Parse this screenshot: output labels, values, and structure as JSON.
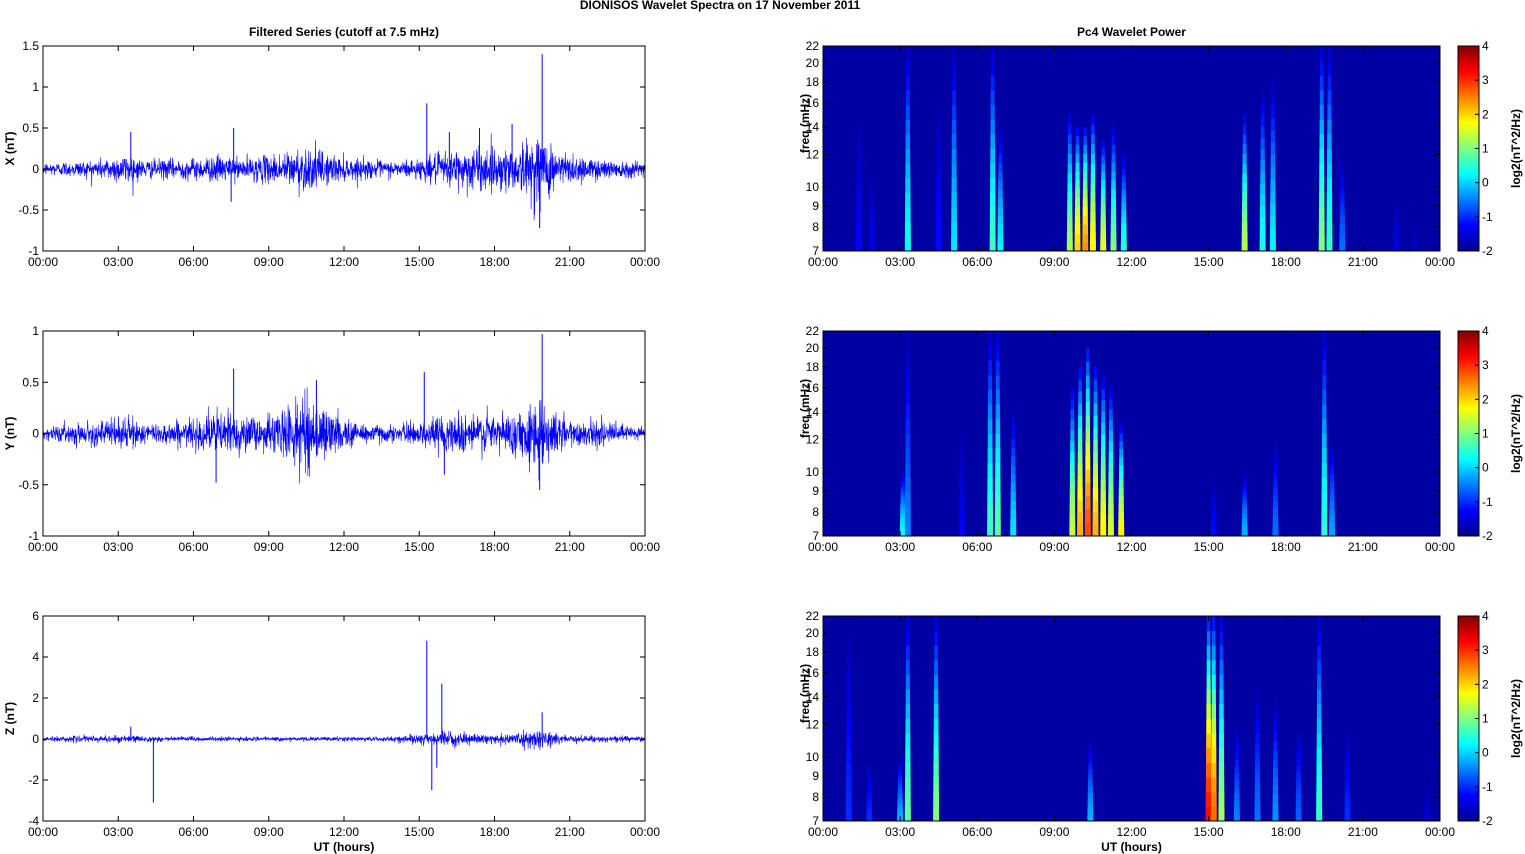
{
  "page_title": "DIONISOS Wavelet Spectra on 17 November  2011",
  "chart_data": [
    {
      "type": "line",
      "title": "Filtered Series (cutoff at 7.5 mHz)",
      "ylabel": "X (nT)",
      "xlabel": "",
      "xlim": [
        0,
        24
      ],
      "ylim": [
        -1,
        1.5
      ],
      "x_ticks": [
        "00:00",
        "03:00",
        "06:00",
        "09:00",
        "12:00",
        "15:00",
        "18:00",
        "21:00",
        "00:00"
      ],
      "y_ticks": [
        "-1",
        "-0.5",
        "0",
        "0.5",
        "1",
        "1.5"
      ],
      "line_color": "#0000ff",
      "envelope": [
        [
          0,
          0.08
        ],
        [
          2,
          0.12
        ],
        [
          3.4,
          0.2
        ],
        [
          4,
          0.12
        ],
        [
          6,
          0.14
        ],
        [
          7,
          0.18
        ],
        [
          7.8,
          0.14
        ],
        [
          9,
          0.18
        ],
        [
          10.5,
          0.3
        ],
        [
          12,
          0.15
        ],
        [
          14,
          0.1
        ],
        [
          15,
          0.14
        ],
        [
          16,
          0.22
        ],
        [
          17,
          0.3
        ],
        [
          18,
          0.28
        ],
        [
          19,
          0.3
        ],
        [
          19.8,
          0.5
        ],
        [
          20.5,
          0.25
        ],
        [
          22,
          0.14
        ],
        [
          24,
          0.1
        ]
      ],
      "spikes": [
        {
          "x": 3.5,
          "y": 0.45
        },
        {
          "x": 7.6,
          "y": 0.5
        },
        {
          "x": 7.5,
          "y": -0.4
        },
        {
          "x": 15.3,
          "y": 0.8
        },
        {
          "x": 16.2,
          "y": 0.45
        },
        {
          "x": 17.4,
          "y": 0.5
        },
        {
          "x": 19.9,
          "y": 1.4
        },
        {
          "x": 19.8,
          "y": -0.72
        },
        {
          "x": 18.7,
          "y": 0.55
        }
      ]
    },
    {
      "type": "line",
      "title": "",
      "ylabel": "Y (nT)",
      "xlabel": "",
      "xlim": [
        0,
        24
      ],
      "ylim": [
        -1,
        1
      ],
      "x_ticks": [
        "00:00",
        "03:00",
        "06:00",
        "09:00",
        "12:00",
        "15:00",
        "18:00",
        "21:00",
        "00:00"
      ],
      "y_ticks": [
        "-1",
        "-0.5",
        "0",
        "0.5",
        "1"
      ],
      "line_color": "#0000ff",
      "envelope": [
        [
          0,
          0.07
        ],
        [
          2,
          0.12
        ],
        [
          3.4,
          0.18
        ],
        [
          4,
          0.1
        ],
        [
          6,
          0.14
        ],
        [
          7,
          0.25
        ],
        [
          7.8,
          0.2
        ],
        [
          9,
          0.18
        ],
        [
          10.5,
          0.4
        ],
        [
          12,
          0.15
        ],
        [
          14,
          0.08
        ],
        [
          15,
          0.12
        ],
        [
          16,
          0.2
        ],
        [
          17,
          0.22
        ],
        [
          18,
          0.22
        ],
        [
          19,
          0.2
        ],
        [
          19.8,
          0.45
        ],
        [
          20.5,
          0.2
        ],
        [
          22,
          0.12
        ],
        [
          24,
          0.08
        ]
      ],
      "spikes": [
        {
          "x": 7.6,
          "y": 0.63
        },
        {
          "x": 6.9,
          "y": -0.48
        },
        {
          "x": 15.2,
          "y": 0.6
        },
        {
          "x": 19.9,
          "y": 0.97
        },
        {
          "x": 19.8,
          "y": -0.55
        },
        {
          "x": 10.9,
          "y": 0.52
        },
        {
          "x": 16,
          "y": -0.4
        }
      ]
    },
    {
      "type": "line",
      "title": "",
      "ylabel": "Z (nT)",
      "xlabel": "UT (hours)",
      "xlim": [
        0,
        24
      ],
      "ylim": [
        -4,
        6
      ],
      "x_ticks": [
        "00:00",
        "03:00",
        "06:00",
        "09:00",
        "12:00",
        "15:00",
        "18:00",
        "21:00",
        "00:00"
      ],
      "y_ticks": [
        "-4",
        "-2",
        "0",
        "2",
        "4",
        "6"
      ],
      "line_color": "#0000ff",
      "envelope": [
        [
          0,
          0.12
        ],
        [
          3,
          0.2
        ],
        [
          4,
          0.15
        ],
        [
          9,
          0.1
        ],
        [
          14,
          0.12
        ],
        [
          15,
          0.3
        ],
        [
          16,
          0.35
        ],
        [
          18,
          0.2
        ],
        [
          19.8,
          0.5
        ],
        [
          21,
          0.18
        ],
        [
          24,
          0.15
        ]
      ],
      "spikes": [
        {
          "x": 4.4,
          "y": -3.1
        },
        {
          "x": 15.3,
          "y": 4.8
        },
        {
          "x": 15.5,
          "y": -2.5
        },
        {
          "x": 15.9,
          "y": 2.7
        },
        {
          "x": 15.7,
          "y": -1.4
        },
        {
          "x": 19.9,
          "y": 1.3
        },
        {
          "x": 3.5,
          "y": 0.6
        }
      ]
    },
    {
      "type": "heatmap",
      "title": "Pc4 Wavelet Power",
      "ylabel": "freq (mHz)",
      "xlabel": "",
      "xlim": [
        0,
        24
      ],
      "ylim": [
        7,
        22
      ],
      "x_ticks": [
        "00:00",
        "03:00",
        "06:00",
        "09:00",
        "12:00",
        "15:00",
        "18:00",
        "21:00",
        "00:00"
      ],
      "y_ticks": [
        "7",
        "8",
        "9",
        "10",
        "12",
        "14",
        "16",
        "18",
        "20",
        "22"
      ],
      "colorbar": {
        "label": "log2(nT^2/Hz)",
        "ticks": [
          "-2",
          "-1",
          "0",
          "1",
          "2",
          "3",
          "4"
        ],
        "range": [
          -2,
          4
        ]
      },
      "background": -2,
      "streaks": [
        {
          "x": 1.4,
          "top": 17,
          "peak": -1.3
        },
        {
          "x": 1.9,
          "top": 12,
          "peak": -1.4
        },
        {
          "x": 3.3,
          "top": 22,
          "peak": 0.3
        },
        {
          "x": 4.5,
          "top": 18,
          "peak": -1.2
        },
        {
          "x": 5.1,
          "top": 22,
          "peak": 0.1
        },
        {
          "x": 6.6,
          "top": 22,
          "peak": 0.6
        },
        {
          "x": 6.9,
          "top": 14,
          "peak": 0.2
        },
        {
          "x": 9.6,
          "top": 15,
          "peak": 1.2
        },
        {
          "x": 9.9,
          "top": 14,
          "peak": 2.0
        },
        {
          "x": 10.2,
          "top": 14,
          "peak": 2.4
        },
        {
          "x": 10.5,
          "top": 15,
          "peak": 1.8
        },
        {
          "x": 10.9,
          "top": 13,
          "peak": 1.6
        },
        {
          "x": 11.3,
          "top": 14,
          "peak": 1.0
        },
        {
          "x": 11.7,
          "top": 12,
          "peak": 0.5
        },
        {
          "x": 16.4,
          "top": 15,
          "peak": 1.3
        },
        {
          "x": 17.1,
          "top": 17,
          "peak": 0.4
        },
        {
          "x": 17.5,
          "top": 18,
          "peak": 0.2
        },
        {
          "x": 19.4,
          "top": 22,
          "peak": 1.0
        },
        {
          "x": 19.7,
          "top": 22,
          "peak": 0.6
        },
        {
          "x": 20.2,
          "top": 12,
          "peak": -0.6
        },
        {
          "x": 22.3,
          "top": 10,
          "peak": -1.4
        },
        {
          "x": 23.0,
          "top": 9,
          "peak": -1.6
        }
      ]
    },
    {
      "type": "heatmap",
      "title": "",
      "ylabel": "freq (mHz)",
      "xlabel": "",
      "xlim": [
        0,
        24
      ],
      "ylim": [
        7,
        22
      ],
      "x_ticks": [
        "00:00",
        "03:00",
        "06:00",
        "09:00",
        "12:00",
        "15:00",
        "18:00",
        "21:00",
        "00:00"
      ],
      "y_ticks": [
        "7",
        "8",
        "9",
        "10",
        "12",
        "14",
        "16",
        "18",
        "20",
        "22"
      ],
      "colorbar": {
        "label": "log2(nT^2/Hz)",
        "ticks": [
          "-2",
          "-1",
          "0",
          "1",
          "2",
          "3",
          "4"
        ],
        "range": [
          -2,
          4
        ]
      },
      "background": -2,
      "streaks": [
        {
          "x": 3.1,
          "top": 10,
          "peak": 0.3
        },
        {
          "x": 3.3,
          "top": 22,
          "peak": -0.5
        },
        {
          "x": 5.4,
          "top": 14,
          "peak": -1.3
        },
        {
          "x": 6.5,
          "top": 22,
          "peak": 0.6
        },
        {
          "x": 6.8,
          "top": 22,
          "peak": 0.8
        },
        {
          "x": 7.4,
          "top": 14,
          "peak": 0.1
        },
        {
          "x": 9.7,
          "top": 16,
          "peak": 1.4
        },
        {
          "x": 10.0,
          "top": 18,
          "peak": 2.2
        },
        {
          "x": 10.3,
          "top": 20,
          "peak": 2.8
        },
        {
          "x": 10.6,
          "top": 18,
          "peak": 2.2
        },
        {
          "x": 10.9,
          "top": 17,
          "peak": 1.8
        },
        {
          "x": 11.2,
          "top": 16,
          "peak": 1.5
        },
        {
          "x": 11.6,
          "top": 13,
          "peak": 1.8
        },
        {
          "x": 15.2,
          "top": 10,
          "peak": -1.2
        },
        {
          "x": 16.4,
          "top": 10,
          "peak": -0.2
        },
        {
          "x": 17.6,
          "top": 12,
          "peak": -0.6
        },
        {
          "x": 19.5,
          "top": 22,
          "peak": 0.5
        },
        {
          "x": 19.8,
          "top": 12,
          "peak": -0.3
        }
      ]
    },
    {
      "type": "heatmap",
      "title": "",
      "ylabel": "freq (mHz)",
      "xlabel": "UT (hours)",
      "xlim": [
        0,
        24
      ],
      "ylim": [
        7,
        22
      ],
      "x_ticks": [
        "00:00",
        "03:00",
        "06:00",
        "09:00",
        "12:00",
        "15:00",
        "18:00",
        "21:00",
        "00:00"
      ],
      "y_ticks": [
        "7",
        "8",
        "9",
        "10",
        "12",
        "14",
        "16",
        "18",
        "20",
        "22"
      ],
      "colorbar": {
        "label": "log2(nT^2/Hz)",
        "ticks": [
          "-2",
          "-1",
          "0",
          "1",
          "2",
          "3",
          "4"
        ],
        "range": [
          -2,
          4
        ]
      },
      "background": -2,
      "streaks": [
        {
          "x": 1.0,
          "top": 22,
          "peak": -1.0
        },
        {
          "x": 1.8,
          "top": 10,
          "peak": -1.0
        },
        {
          "x": 3.0,
          "top": 10,
          "peak": -0.2
        },
        {
          "x": 3.3,
          "top": 22,
          "peak": 0.8
        },
        {
          "x": 4.4,
          "top": 22,
          "peak": 1.0
        },
        {
          "x": 10.4,
          "top": 11,
          "peak": -0.2
        },
        {
          "x": 15.0,
          "top": 22,
          "peak": 3.2
        },
        {
          "x": 15.2,
          "top": 22,
          "peak": 2.6
        },
        {
          "x": 15.5,
          "top": 22,
          "peak": 1.2
        },
        {
          "x": 16.1,
          "top": 12,
          "peak": -0.5
        },
        {
          "x": 16.9,
          "top": 15,
          "peak": -0.6
        },
        {
          "x": 17.6,
          "top": 14,
          "peak": -0.4
        },
        {
          "x": 18.5,
          "top": 12,
          "peak": -0.7
        },
        {
          "x": 19.3,
          "top": 22,
          "peak": 0.6
        },
        {
          "x": 20.4,
          "top": 12,
          "peak": -1.0
        },
        {
          "x": 23.5,
          "top": 9,
          "peak": -1.5
        }
      ]
    }
  ]
}
